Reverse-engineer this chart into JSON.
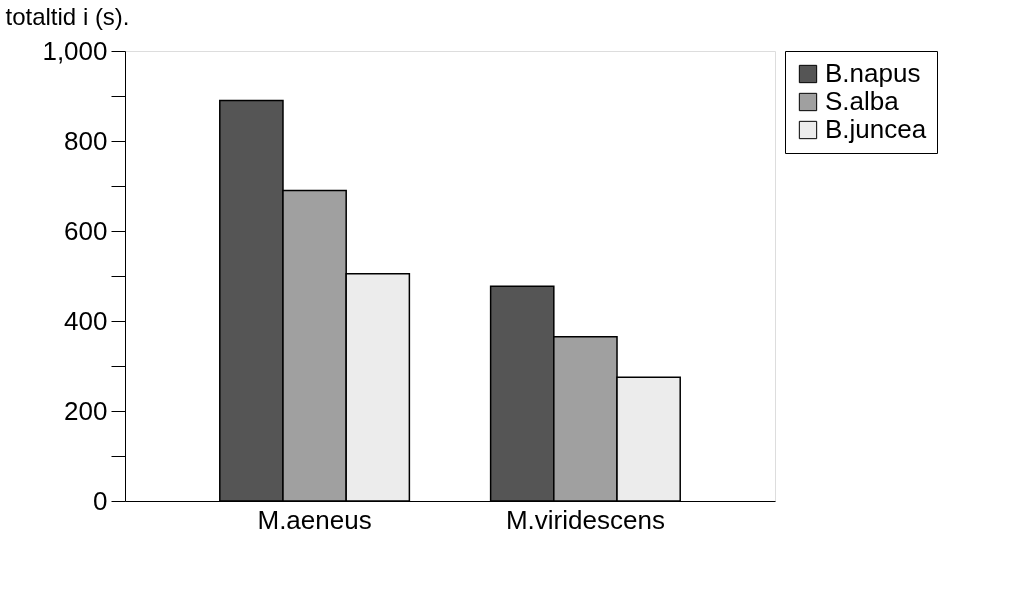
{
  "chart_data": {
    "type": "bar",
    "ylabel": "totaltid i (s).",
    "categories": [
      "M.aeneus",
      "M.viridescens"
    ],
    "series": [
      {
        "name": "B.napus",
        "color": "#555555",
        "values": [
          890,
          477
        ]
      },
      {
        "name": "S.alba",
        "color": "#a0a0a0",
        "values": [
          690,
          365
        ]
      },
      {
        "name": "B.juncea",
        "color": "#ececec",
        "values": [
          505,
          275
        ]
      }
    ],
    "ylim": [
      0,
      1000
    ],
    "yticks": [
      0,
      {
        "value": 100,
        "label": null
      },
      200,
      {
        "value": 300,
        "label": null
      },
      400,
      {
        "value": 500,
        "label": null
      },
      600,
      {
        "value": 700,
        "label": null
      },
      800,
      {
        "value": 900,
        "label": null
      },
      {
        "value": 1000,
        "label": "1,000"
      }
    ],
    "grid": false,
    "legend": "top right"
  }
}
